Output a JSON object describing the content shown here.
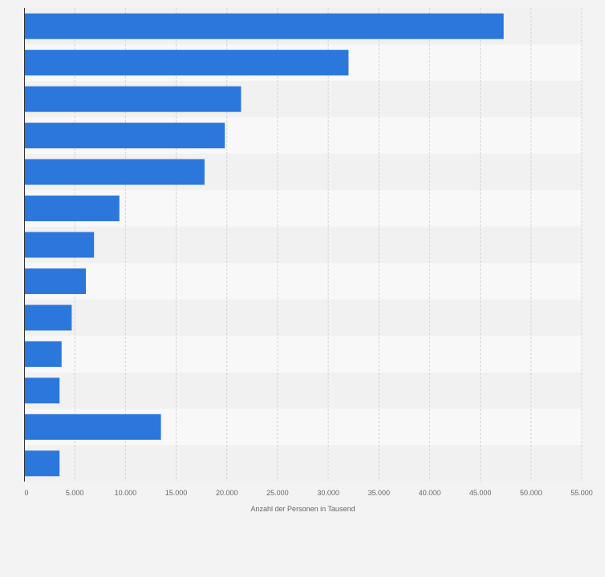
{
  "chart_data": {
    "type": "bar",
    "orientation": "horizontal",
    "categories": [
      "",
      "",
      "",
      "",
      "",
      "",
      "",
      "",
      "",
      "",
      "",
      "",
      ""
    ],
    "values": [
      47300,
      32000,
      21400,
      19800,
      17800,
      9400,
      6900,
      6100,
      4700,
      3700,
      3500,
      13500,
      3500
    ],
    "title": "",
    "xlabel": "Anzahl der Personen in Tausend",
    "ylabel": "",
    "xlim": [
      0,
      55000
    ],
    "xticks": [
      0,
      5000,
      10000,
      15000,
      20000,
      25000,
      30000,
      35000,
      40000,
      45000,
      50000,
      55000
    ],
    "xtick_labels": [
      "0",
      "5.000",
      "10.000",
      "15.000",
      "20.000",
      "25.000",
      "30.000",
      "35.000",
      "40.000",
      "45.000",
      "50.000",
      "55.000"
    ],
    "grid": true,
    "legend": "none",
    "bar_color": "#2c77dc",
    "band_colors": [
      "#f1f1f1",
      "#f8f8f8"
    ],
    "axis_color": "#333333",
    "grid_color": "#d4d4d4",
    "text_color": "#666666"
  }
}
